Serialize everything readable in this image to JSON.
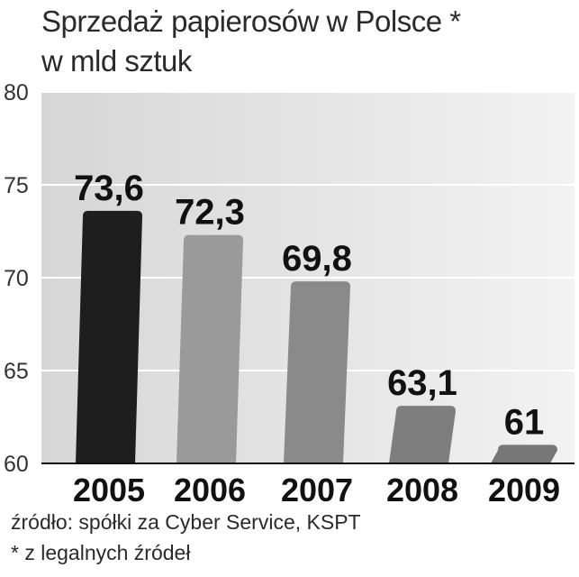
{
  "title": {
    "line1": "Sprzedaż papierosów w Polsce *",
    "line2": "w mld sztuk"
  },
  "chart_data": {
    "type": "bar",
    "categories": [
      "2005",
      "2006",
      "2007",
      "2008",
      "2009"
    ],
    "values": [
      73.6,
      72.3,
      69.8,
      63.1,
      61
    ],
    "value_labels": [
      "73,6",
      "72,3",
      "69,8",
      "63,1",
      "61"
    ],
    "ylim": [
      60,
      80
    ],
    "yticks": [
      60,
      65,
      70,
      75,
      80
    ],
    "grid": true,
    "title": "Sprzedaż papierosów w Polsce *",
    "subtitle": "w mld sztuk",
    "bar_colors": [
      "#1e1e1e",
      "#9a9a9a",
      "#8a8a8a",
      "#7e7e7e",
      "#777777"
    ]
  },
  "footer": {
    "source": "źródło: spółki za Cyber Service, KSPT",
    "note": "* z legalnych źródeł"
  }
}
